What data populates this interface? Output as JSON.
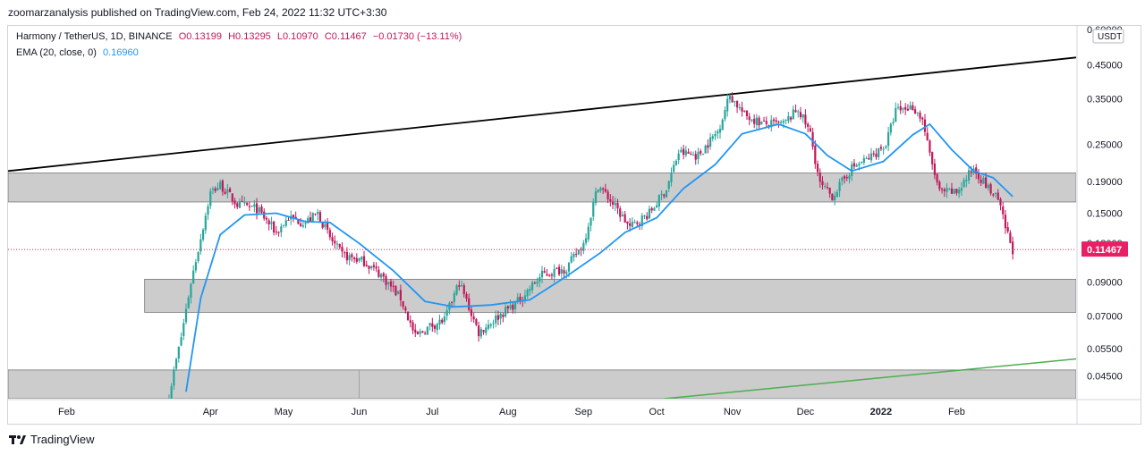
{
  "header": {
    "published_by": "zoomarzanalysis published on TradingView.com, Feb 24, 2022 11:32 UTC+3:30"
  },
  "legend": {
    "symbol": "Harmony / TetherUS, 1D, BINANCE",
    "open": "O0.13199",
    "high": "H0.13295",
    "low": "L0.10970",
    "close": "C0.11467",
    "change": "−0.01730 (−13.11%)",
    "ema_label": "EMA (20, close, 0)",
    "ema_value": "0.16960"
  },
  "footer": {
    "brand": "TradingView"
  },
  "colors": {
    "up": "#26a69a",
    "down": "#c2185b",
    "ema": "#2196f3",
    "zone": "#cccccc",
    "trend_upper": "#000000",
    "trend_lower": "#4caf50",
    "last_price": "#e91e63"
  },
  "chart_data": {
    "type": "candlestick",
    "currency_badge": "USDT",
    "y_scale": "log",
    "ylim": [
      0.038,
      0.6
    ],
    "yticks": [
      "0.45000",
      "0.35000",
      "0.25000",
      "0.19000",
      "0.15000",
      "0.12000",
      "0.09000",
      "0.07000",
      "0.05500",
      "0.04500"
    ],
    "ytick_values": [
      0.45,
      0.35,
      0.25,
      0.19,
      0.15,
      0.12,
      0.09,
      0.07,
      0.055,
      0.045
    ],
    "top_cut_label": "0.60000",
    "last_price": {
      "value": 0.11467,
      "label": "0.11467"
    },
    "x_start": "2021-01-08",
    "x_end": "2022-03-22",
    "xticks": [
      {
        "date": "2021-02-01",
        "label": "Feb"
      },
      {
        "date": "2021-04-01",
        "label": "Apr"
      },
      {
        "date": "2021-05-01",
        "label": "May"
      },
      {
        "date": "2021-06-01",
        "label": "Jun"
      },
      {
        "date": "2021-07-01",
        "label": "Jul"
      },
      {
        "date": "2021-08-01",
        "label": "Aug"
      },
      {
        "date": "2021-09-01",
        "label": "Sep"
      },
      {
        "date": "2021-10-01",
        "label": "Oct"
      },
      {
        "date": "2021-11-01",
        "label": "Nov"
      },
      {
        "date": "2021-12-01",
        "label": "Dec"
      },
      {
        "date": "2022-01-01",
        "label": "2022",
        "bold": true
      },
      {
        "date": "2022-02-01",
        "label": "Feb"
      }
    ],
    "zones": [
      {
        "from": "2021-01-08",
        "to": "2022-03-22",
        "y_low": 0.163,
        "y_high": 0.202
      },
      {
        "from": "2021-03-05",
        "to": "2022-03-22",
        "y_low": 0.072,
        "y_high": 0.092
      },
      {
        "from": "2021-01-08",
        "to": "2022-03-22",
        "y_low": 0.038,
        "y_high": 0.047
      }
    ],
    "trendlines": [
      {
        "name": "upper",
        "from": [
          "2021-01-08",
          0.205
        ],
        "to": [
          "2022-03-22",
          0.475
        ]
      },
      {
        "name": "lower",
        "from": [
          "2021-10-04",
          0.038
        ],
        "to": [
          "2022-03-22",
          0.051
        ]
      }
    ],
    "price_path": [
      [
        "2021-03-15",
        0.039
      ],
      [
        "2021-03-20",
        0.06
      ],
      [
        "2021-03-24",
        0.09
      ],
      [
        "2021-03-28",
        0.125
      ],
      [
        "2021-04-01",
        0.175
      ],
      [
        "2021-04-05",
        0.185
      ],
      [
        "2021-04-12",
        0.16
      ],
      [
        "2021-04-20",
        0.155
      ],
      [
        "2021-04-28",
        0.13
      ],
      [
        "2021-05-03",
        0.145
      ],
      [
        "2021-05-10",
        0.14
      ],
      [
        "2021-05-15",
        0.15
      ],
      [
        "2021-05-20",
        0.125
      ],
      [
        "2021-05-25",
        0.11
      ],
      [
        "2021-06-03",
        0.105
      ],
      [
        "2021-06-10",
        0.095
      ],
      [
        "2021-06-18",
        0.08
      ],
      [
        "2021-06-24",
        0.06
      ],
      [
        "2021-06-30",
        0.065
      ],
      [
        "2021-07-06",
        0.068
      ],
      [
        "2021-07-12",
        0.09
      ],
      [
        "2021-07-20",
        0.062
      ],
      [
        "2021-07-28",
        0.07
      ],
      [
        "2021-08-05",
        0.078
      ],
      [
        "2021-08-15",
        0.095
      ],
      [
        "2021-08-25",
        0.1
      ],
      [
        "2021-09-01",
        0.12
      ],
      [
        "2021-09-07",
        0.185
      ],
      [
        "2021-09-12",
        0.165
      ],
      [
        "2021-09-20",
        0.135
      ],
      [
        "2021-09-28",
        0.15
      ],
      [
        "2021-10-05",
        0.18
      ],
      [
        "2021-10-10",
        0.235
      ],
      [
        "2021-10-18",
        0.23
      ],
      [
        "2021-10-26",
        0.275
      ],
      [
        "2021-10-31",
        0.36
      ],
      [
        "2021-11-06",
        0.31
      ],
      [
        "2021-11-14",
        0.29
      ],
      [
        "2021-11-22",
        0.29
      ],
      [
        "2021-11-28",
        0.325
      ],
      [
        "2021-12-03",
        0.27
      ],
      [
        "2021-12-07",
        0.185
      ],
      [
        "2021-12-12",
        0.17
      ],
      [
        "2021-12-20",
        0.21
      ],
      [
        "2021-12-27",
        0.225
      ],
      [
        "2022-01-03",
        0.25
      ],
      [
        "2022-01-07",
        0.32
      ],
      [
        "2022-01-14",
        0.33
      ],
      [
        "2022-01-18",
        0.3
      ],
      [
        "2022-01-21",
        0.23
      ],
      [
        "2022-01-25",
        0.175
      ],
      [
        "2022-02-01",
        0.175
      ],
      [
        "2022-02-08",
        0.21
      ],
      [
        "2022-02-14",
        0.18
      ],
      [
        "2022-02-18",
        0.165
      ],
      [
        "2022-02-21",
        0.135
      ],
      [
        "2022-02-24",
        0.11467
      ]
    ],
    "ema": {
      "name": "EMA (20, close, 0)",
      "path": [
        [
          "2021-03-22",
          0.04
        ],
        [
          "2021-03-28",
          0.08
        ],
        [
          "2021-04-05",
          0.128
        ],
        [
          "2021-04-15",
          0.148
        ],
        [
          "2021-04-28",
          0.15
        ],
        [
          "2021-05-10",
          0.141
        ],
        [
          "2021-05-20",
          0.14
        ],
        [
          "2021-06-01",
          0.12
        ],
        [
          "2021-06-15",
          0.098
        ],
        [
          "2021-06-28",
          0.078
        ],
        [
          "2021-07-10",
          0.075
        ],
        [
          "2021-07-25",
          0.076
        ],
        [
          "2021-08-10",
          0.079
        ],
        [
          "2021-08-25",
          0.094
        ],
        [
          "2021-09-08",
          0.112
        ],
        [
          "2021-09-18",
          0.13
        ],
        [
          "2021-10-01",
          0.145
        ],
        [
          "2021-10-12",
          0.18
        ],
        [
          "2021-10-25",
          0.215
        ],
        [
          "2021-11-05",
          0.27
        ],
        [
          "2021-11-20",
          0.29
        ],
        [
          "2021-12-01",
          0.27
        ],
        [
          "2021-12-10",
          0.23
        ],
        [
          "2021-12-20",
          0.205
        ],
        [
          "2022-01-02",
          0.22
        ],
        [
          "2022-01-14",
          0.268
        ],
        [
          "2022-01-21",
          0.29
        ],
        [
          "2022-01-30",
          0.24
        ],
        [
          "2022-02-08",
          0.205
        ],
        [
          "2022-02-16",
          0.195
        ],
        [
          "2022-02-24",
          0.1696
        ]
      ]
    }
  }
}
